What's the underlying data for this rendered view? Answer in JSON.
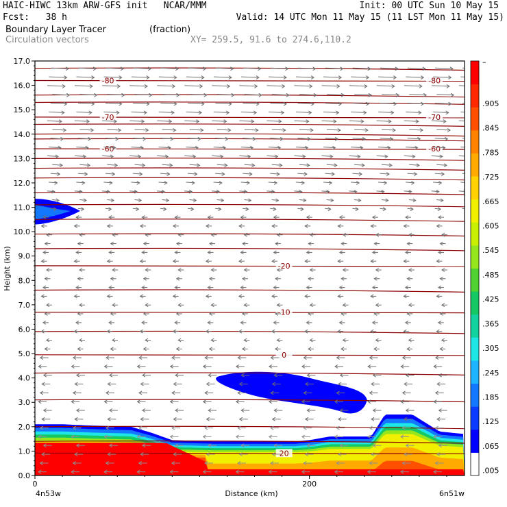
{
  "header": {
    "line1_left": "HAIC-HIWC 13km ARW-GFS init   NCAR/MMM",
    "line1_right": "Init: 00 UTC Sun 10 May 15",
    "line2_left": "Fcst:   38 h",
    "line2_right": "Valid: 14 UTC Mon 11 May 15 (11 LST Mon 11 May 15)",
    "line3_left": "Boundary Layer Tracer",
    "line3_units": "(fraction)",
    "line4_left": "Circulation vectors",
    "line4_xy": "XY= 259.5, 91.6 to 274.6,110.2"
  },
  "chart_data": {
    "type": "heatmap",
    "title": "Boundary Layer Tracer",
    "units": "(fraction)",
    "ylabel": "Height (km)",
    "xlabel": "Distance (km)",
    "ylim": [
      0,
      17
    ],
    "xlim": [
      0,
      313
    ],
    "y_ticks": [
      "0.0",
      "1.0",
      "2.0",
      "3.0",
      "4.0",
      "5.0",
      "6.0",
      "7.0",
      "8.0",
      "9.0",
      "10.0",
      "11.0",
      "12.0",
      "13.0",
      "14.0",
      "15.0",
      "16.0",
      "17.0"
    ],
    "x_ticks": [
      {
        "value": 0,
        "label": "0"
      },
      {
        "value": 200,
        "label": "200"
      }
    ],
    "x_endpoints": {
      "left": "4n53w",
      "right": "6n51w"
    },
    "colorbar": {
      "labels": [
        ".005",
        ".065",
        ".125",
        ".185",
        ".245",
        ".305",
        ".365",
        ".425",
        ".485",
        ".545",
        ".605",
        ".665",
        ".725",
        ".785",
        ".845",
        ".905"
      ],
      "top_label": "–",
      "colors": [
        "#ffffff",
        "#0000ff",
        "#0a3cff",
        "#1478ff",
        "#1eb4ff",
        "#1ee6e6",
        "#14d2a0",
        "#14c864",
        "#50d232",
        "#96e61e",
        "#c8f000",
        "#f0f000",
        "#ffd200",
        "#ffaa00",
        "#ff8200",
        "#ff5000",
        "#ff2800",
        "#ff0000"
      ]
    },
    "isotherms": {
      "color": "#8b0000",
      "levels": [
        {
          "label": "-80",
          "height_km": 16.2
        },
        {
          "label": "-70",
          "height_km": 14.7
        },
        {
          "label": "-60",
          "height_km": 13.4
        },
        {
          "label": "-20",
          "height_km": 8.6
        },
        {
          "label": "-10",
          "height_km": 6.7
        },
        {
          "label": "0",
          "height_km": 4.95
        },
        {
          "label": "20",
          "height_km": 0.92
        }
      ],
      "unlabeled_heights_km": [
        16.7,
        15.6,
        15.3,
        14.4,
        14.0,
        13.8,
        13.0,
        12.6,
        12.2,
        11.6,
        11.1,
        10.5,
        9.9,
        9.3,
        7.6,
        5.9,
        4.2,
        3.1,
        2.0,
        1.4
      ]
    },
    "tracer_regions": [
      {
        "name": "boundary layer",
        "top_km": [
          2.1,
          2.1,
          2.05,
          2.0,
          1.75,
          1.45,
          1.4,
          1.4,
          1.4,
          1.45,
          1.6,
          1.6,
          2.5,
          2.5,
          1.8,
          1.7
        ],
        "x_km": [
          0,
          20,
          40,
          70,
          85,
          100,
          130,
          160,
          190,
          200,
          215,
          245,
          255,
          275,
          295,
          313
        ]
      },
      {
        "name": "mid-level layer",
        "x_km": [
          135,
          240
        ],
        "height_km": [
          3.0,
          4.3
        ]
      },
      {
        "name": "upper-level patch",
        "x_km": [
          0,
          32
        ],
        "height_km": [
          10.3,
          11.3
        ]
      }
    ],
    "vectors": {
      "description": "Circulation vectors: westerly above ~11 km, easterly below",
      "upper_dir": "east",
      "lower_dir": "west"
    }
  }
}
